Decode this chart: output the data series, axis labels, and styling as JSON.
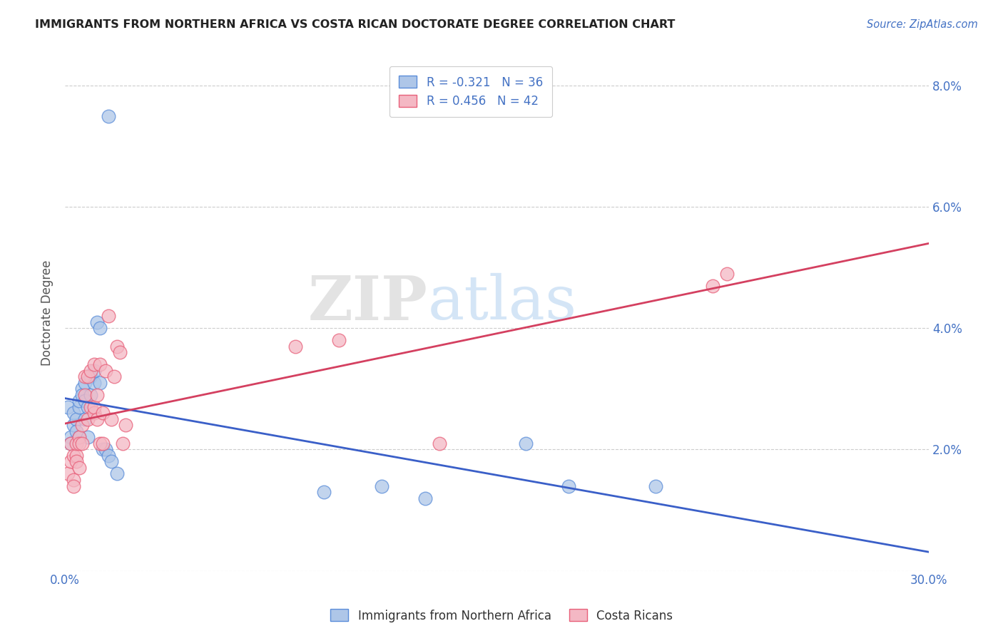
{
  "title": "IMMIGRANTS FROM NORTHERN AFRICA VS COSTA RICAN DOCTORATE DEGREE CORRELATION CHART",
  "source": "Source: ZipAtlas.com",
  "ylabel": "Doctorate Degree",
  "xlim": [
    0.0,
    0.3
  ],
  "ylim": [
    0.0,
    0.085
  ],
  "xticks": [
    0.0,
    0.05,
    0.1,
    0.15,
    0.2,
    0.25,
    0.3
  ],
  "xticklabels": [
    "0.0%",
    "",
    "",
    "",
    "",
    "",
    "30.0%"
  ],
  "yticks_right": [
    0.0,
    0.02,
    0.04,
    0.06,
    0.08
  ],
  "yticklabels_right": [
    "",
    "2.0%",
    "4.0%",
    "6.0%",
    "8.0%"
  ],
  "blue_R": "-0.321",
  "blue_N": "36",
  "pink_R": "0.456",
  "pink_N": "42",
  "blue_color": "#aec6e8",
  "pink_color": "#f4b8c4",
  "blue_edge_color": "#5b8dd9",
  "pink_edge_color": "#e8607a",
  "blue_line_color": "#3a5fc8",
  "pink_line_color": "#d44060",
  "watermark_zip": "ZIP",
  "watermark_atlas": "atlas",
  "legend_label_blue": "Immigrants from Northern Africa",
  "legend_label_pink": "Costa Ricans",
  "blue_scatter_x": [
    0.001,
    0.015,
    0.002,
    0.002,
    0.003,
    0.003,
    0.004,
    0.004,
    0.005,
    0.005,
    0.005,
    0.006,
    0.006,
    0.007,
    0.007,
    0.007,
    0.008,
    0.008,
    0.009,
    0.009,
    0.01,
    0.01,
    0.011,
    0.012,
    0.012,
    0.013,
    0.014,
    0.015,
    0.016,
    0.018,
    0.09,
    0.11,
    0.125,
    0.16,
    0.175,
    0.205
  ],
  "blue_scatter_y": [
    0.027,
    0.075,
    0.022,
    0.021,
    0.024,
    0.026,
    0.025,
    0.023,
    0.022,
    0.027,
    0.028,
    0.03,
    0.029,
    0.028,
    0.025,
    0.031,
    0.027,
    0.022,
    0.029,
    0.032,
    0.031,
    0.033,
    0.041,
    0.04,
    0.031,
    0.02,
    0.02,
    0.019,
    0.018,
    0.016,
    0.013,
    0.014,
    0.012,
    0.021,
    0.014,
    0.014
  ],
  "pink_scatter_x": [
    0.001,
    0.002,
    0.002,
    0.003,
    0.003,
    0.003,
    0.004,
    0.004,
    0.004,
    0.005,
    0.005,
    0.005,
    0.006,
    0.006,
    0.007,
    0.007,
    0.008,
    0.008,
    0.009,
    0.009,
    0.01,
    0.01,
    0.01,
    0.011,
    0.011,
    0.012,
    0.012,
    0.013,
    0.013,
    0.014,
    0.015,
    0.016,
    0.017,
    0.018,
    0.019,
    0.02,
    0.021,
    0.08,
    0.095,
    0.13,
    0.225,
    0.23
  ],
  "pink_scatter_y": [
    0.016,
    0.018,
    0.021,
    0.019,
    0.015,
    0.014,
    0.019,
    0.018,
    0.021,
    0.017,
    0.022,
    0.021,
    0.021,
    0.024,
    0.029,
    0.032,
    0.025,
    0.032,
    0.027,
    0.033,
    0.026,
    0.027,
    0.034,
    0.029,
    0.025,
    0.021,
    0.034,
    0.026,
    0.021,
    0.033,
    0.042,
    0.025,
    0.032,
    0.037,
    0.036,
    0.021,
    0.024,
    0.037,
    0.038,
    0.021,
    0.047,
    0.049
  ]
}
